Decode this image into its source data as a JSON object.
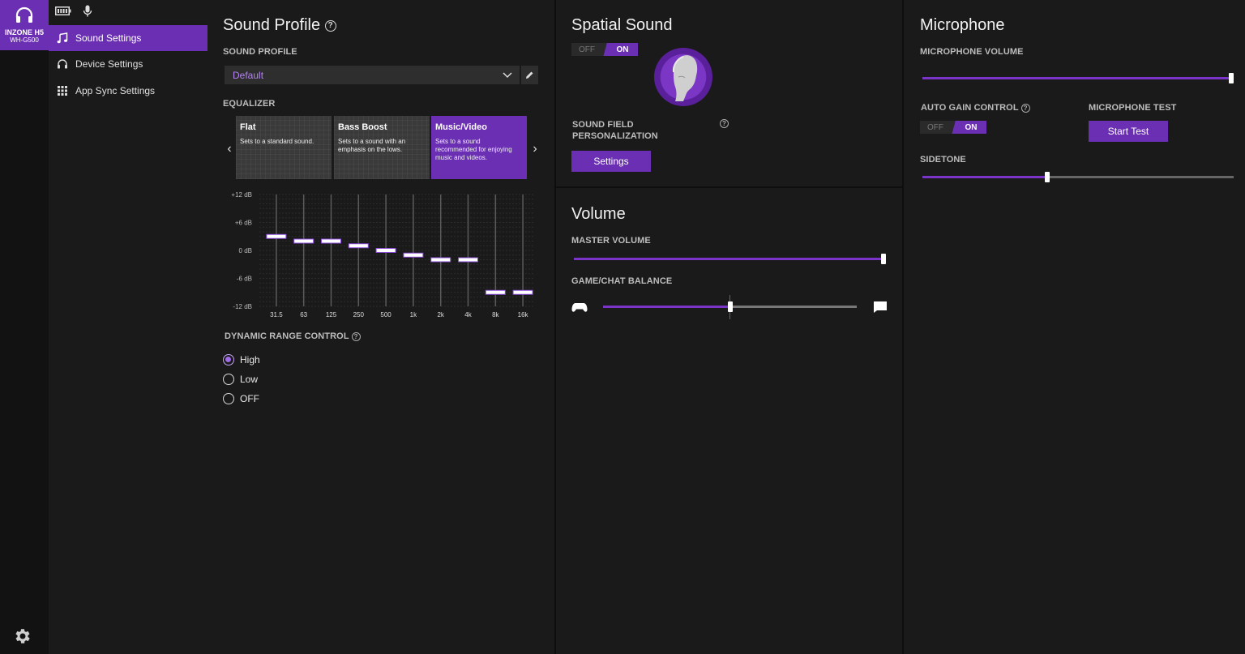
{
  "device": {
    "name": "INZONE H5",
    "model": "WH-G500"
  },
  "nav": {
    "items": [
      {
        "label": "Sound Settings"
      },
      {
        "label": "Device Settings"
      },
      {
        "label": "App Sync Settings"
      }
    ]
  },
  "sound_profile": {
    "title": "Sound Profile",
    "profile_label": "SOUND PROFILE",
    "selected_profile": "Default",
    "equalizer_label": "EQUALIZER",
    "presets": [
      {
        "title": "Flat",
        "desc": "Sets to a standard sound."
      },
      {
        "title": "Bass Boost",
        "desc": "Sets to a sound with an emphasis on the lows."
      },
      {
        "title": "Music/Video",
        "desc": "Sets to a sound recommended for enjoying music and videos."
      }
    ],
    "selected_preset": "Music/Video",
    "drc_label": "DYNAMIC RANGE CONTROL",
    "drc_options": [
      "High",
      "Low",
      "OFF"
    ],
    "drc_selected": "High"
  },
  "chart_data": {
    "type": "bar",
    "categories": [
      "31.5",
      "63",
      "125",
      "250",
      "500",
      "1k",
      "2k",
      "4k",
      "8k",
      "16k"
    ],
    "values": [
      3,
      2,
      2,
      1,
      0,
      -1,
      -2,
      -2,
      -9,
      -9
    ],
    "y_ticks": [
      "+12 dB",
      "+6 dB",
      "0 dB",
      "-6 dB",
      "-12 dB"
    ],
    "ylim": [
      -12,
      12
    ],
    "grid": true
  },
  "spatial": {
    "title": "Spatial Sound",
    "toggle_off": "OFF",
    "toggle_on": "ON",
    "toggle_state": "ON",
    "personalization_label": "SOUND FIELD PERSONALIZATION",
    "settings_button": "Settings"
  },
  "volume": {
    "title": "Volume",
    "master_label": "MASTER VOLUME",
    "master_value": 1.0,
    "balance_label": "GAME/CHAT BALANCE",
    "balance_value": 0.5
  },
  "microphone": {
    "title": "Microphone",
    "volume_label": "MICROPHONE VOLUME",
    "volume_value": 1.0,
    "agc_label": "AUTO GAIN CONTROL",
    "agc_off": "OFF",
    "agc_on": "ON",
    "agc_state": "ON",
    "test_label": "MICROPHONE TEST",
    "test_button": "Start Test",
    "sidetone_label": "SIDETONE",
    "sidetone_value": 0.4
  },
  "colors": {
    "accent": "#6b2fb3",
    "accent_light": "#b383f0",
    "background": "#1a1a1a"
  }
}
